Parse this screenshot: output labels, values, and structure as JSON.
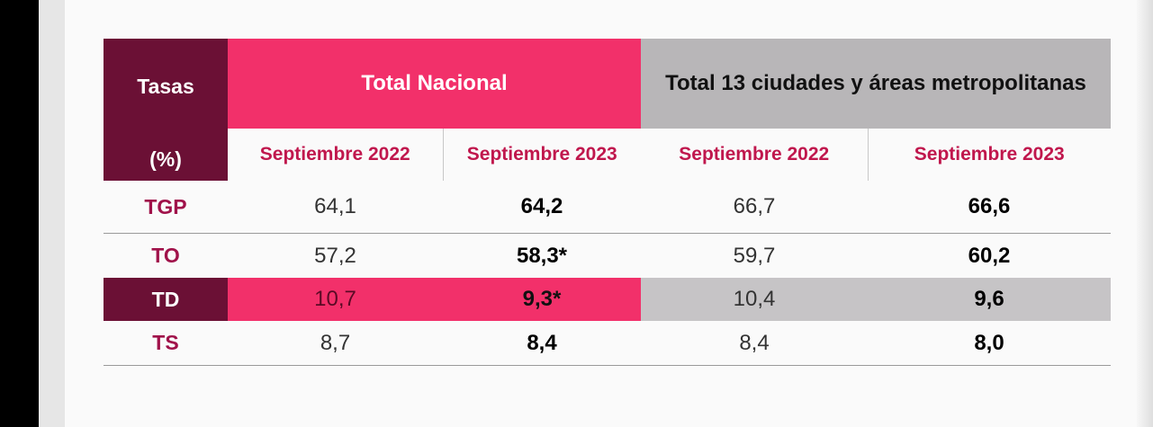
{
  "table": {
    "corner": {
      "top": "Tasas",
      "bottom": "(%)"
    },
    "groups": [
      "Total Nacional",
      "Total 13 ciudades y áreas metropolitanas"
    ],
    "periods": [
      "Septiembre 2022",
      "Septiembre 2023",
      "Septiembre 2022",
      "Septiembre 2023"
    ],
    "rows": [
      {
        "rate": "TGP",
        "values": [
          "64,1",
          "64,2",
          "66,7",
          "66,6"
        ]
      },
      {
        "rate": "TO",
        "values": [
          "57,2",
          "58,3*",
          "59,7",
          "60,2"
        ]
      },
      {
        "rate": "TD",
        "values": [
          "10,7",
          "9,3*",
          "10,4",
          "9,6"
        ]
      },
      {
        "rate": "TS",
        "values": [
          "8,7",
          "8,4",
          "8,4",
          "8,0"
        ]
      }
    ]
  },
  "colors": {
    "corner_bg": "#6b1035",
    "nacional_bg": "#f2306a",
    "metropolitan_bg": "#b8b6b8",
    "period_text": "#c0174d",
    "rate_text": "#a0124a"
  }
}
